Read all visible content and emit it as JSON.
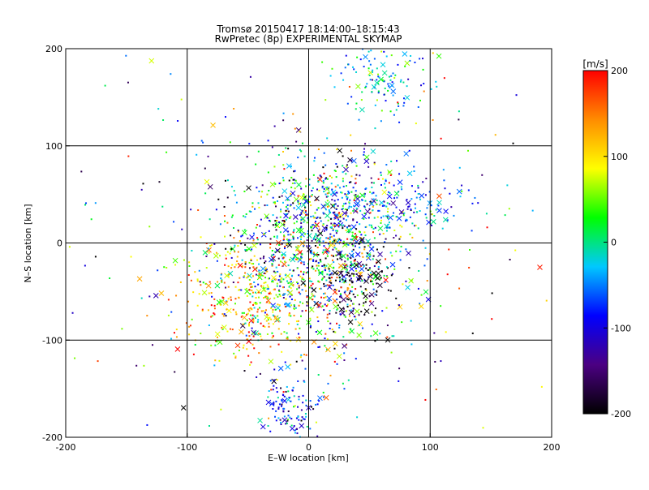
{
  "chart_data": {
    "type": "scatter",
    "title": "Tromsø 20150417 18:14:00–18:15:43",
    "subtitle": "RwPretec (8p) EXPERIMENTAL SKYMAP",
    "xlabel": "E–W location [km]",
    "ylabel": "N–S location [km]",
    "xlim": [
      -200,
      200
    ],
    "ylim": [
      -200,
      200
    ],
    "xticks": [
      -200,
      -100,
      0,
      100,
      200
    ],
    "yticks": [
      -200,
      -100,
      0,
      100,
      200
    ],
    "grid": true,
    "colorbar": {
      "label": "[m/s]",
      "min": -200,
      "max": 200,
      "ticks": [
        -200,
        -100,
        0,
        100,
        200
      ],
      "colors": [
        "#000000",
        "#4b0082",
        "#0000ff",
        "#00c8ff",
        "#00ff00",
        "#ffff00",
        "#ff8c00",
        "#ff0000"
      ]
    },
    "point_groups": [
      {
        "name": "",
        "center": [
          0,
          -20
        ],
        "spread": [
          40,
          45
        ],
        "n": 900,
        "vmean": 0,
        "vspread": 110
      },
      {
        "name": "",
        "center": [
          20,
          30
        ],
        "spread": [
          25,
          35
        ],
        "n": 350,
        "vmean": -40,
        "vspread": 90
      },
      {
        "name": "",
        "center": [
          -50,
          -60
        ],
        "spread": [
          30,
          30
        ],
        "n": 320,
        "vmean": 110,
        "vspread": 60
      },
      {
        "name": "",
        "center": [
          -15,
          -170
        ],
        "spread": [
          12,
          18
        ],
        "n": 110,
        "vmean": -80,
        "vspread": 50
      },
      {
        "name": "",
        "center": [
          60,
          170
        ],
        "spread": [
          20,
          20
        ],
        "n": 120,
        "vmean": -20,
        "vspread": 40
      },
      {
        "name": "",
        "center": [
          80,
          40
        ],
        "spread": [
          30,
          15
        ],
        "n": 120,
        "vmean": -60,
        "vspread": 40
      },
      {
        "name": "",
        "center": [
          40,
          -40
        ],
        "spread": [
          15,
          15
        ],
        "n": 90,
        "vmean": -190,
        "vspread": 20
      },
      {
        "name": "",
        "center": [
          0,
          0
        ],
        "spread": [
          110,
          110
        ],
        "n": 260,
        "vmean": 0,
        "vspread": 130
      }
    ]
  }
}
